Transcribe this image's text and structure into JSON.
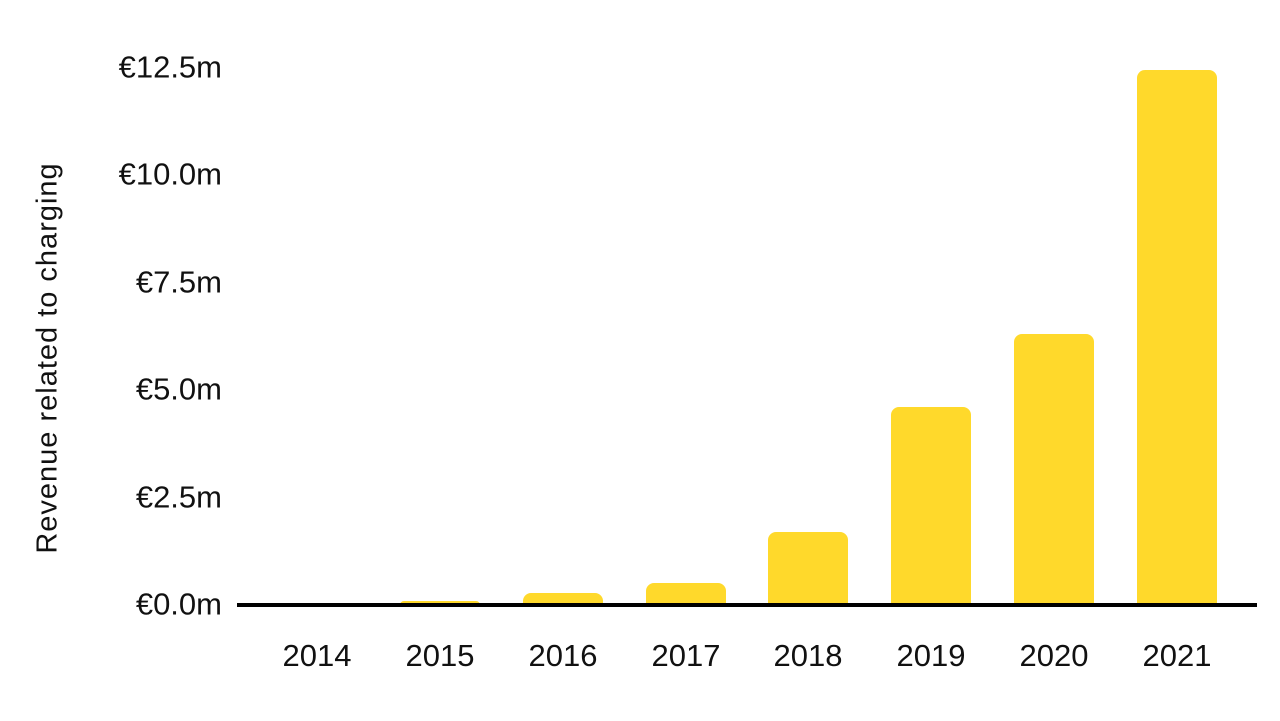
{
  "chart_data": {
    "type": "bar",
    "title": "",
    "xlabel": "",
    "ylabel": "Revenue related to charging",
    "categories": [
      "2014",
      "2015",
      "2016",
      "2017",
      "2018",
      "2019",
      "2020",
      "2021"
    ],
    "values": [
      0.0,
      0.1,
      0.27,
      0.52,
      1.7,
      4.6,
      6.3,
      12.45
    ],
    "series_name": "Revenue related to charging",
    "units": "€m",
    "ylim": [
      0,
      12.5
    ],
    "yticks": [
      {
        "value": 0.0,
        "label": "€0.0m"
      },
      {
        "value": 2.5,
        "label": "€2.5m"
      },
      {
        "value": 5.0,
        "label": "€5.0m"
      },
      {
        "value": 7.5,
        "label": "€7.5m"
      },
      {
        "value": 10.0,
        "label": "€10.0m"
      },
      {
        "value": 12.5,
        "label": "€12.5m"
      }
    ],
    "grid": false,
    "legend": null,
    "colors": {
      "bar": "#FFD92B",
      "axis_line": "#000000",
      "text": "#111111",
      "background": "#FFFFFF"
    }
  }
}
